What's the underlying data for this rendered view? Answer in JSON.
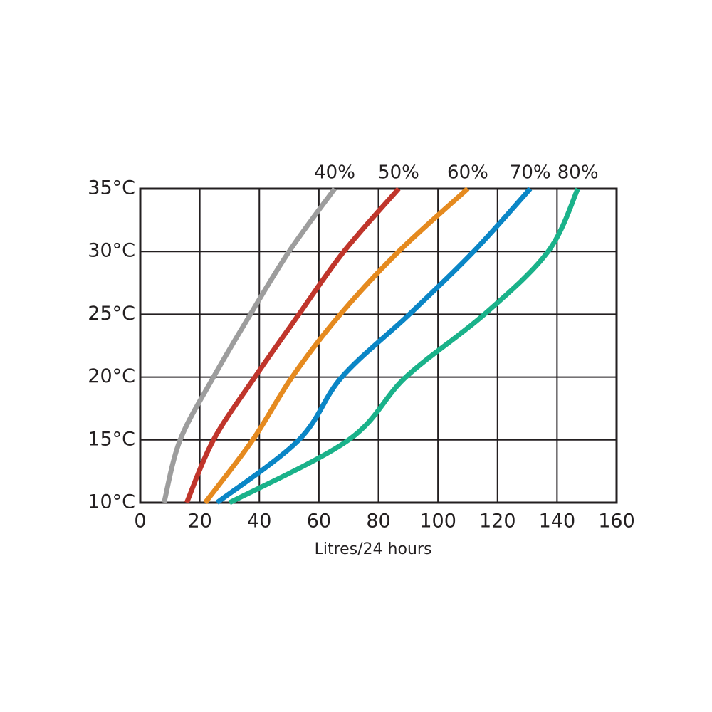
{
  "chart_data": {
    "type": "line",
    "x_label": "Litres/24 hours",
    "xlim": [
      0,
      160
    ],
    "xticks": [
      0,
      20,
      40,
      60,
      80,
      100,
      120,
      140,
      160
    ],
    "ylim": [
      10,
      35
    ],
    "yticks": [
      {
        "value": 10,
        "label": "10°C"
      },
      {
        "value": 15,
        "label": "15°C"
      },
      {
        "value": 20,
        "label": "20°C"
      },
      {
        "value": 25,
        "label": "25°C"
      },
      {
        "value": 30,
        "label": "30°C"
      },
      {
        "value": 35,
        "label": "35°C"
      }
    ],
    "grid": true,
    "series": [
      {
        "name": "40%",
        "color": "#9d9d9d",
        "x": [
          8,
          13.4,
          24.6,
          37,
          50,
          65.3
        ],
        "values": [
          10,
          15,
          20,
          25,
          30,
          35
        ]
      },
      {
        "name": "50%",
        "color": "#c0352b",
        "x": [
          15.6,
          24.6,
          38.5,
          53.3,
          68.4,
          86.8
        ],
        "values": [
          10,
          15,
          20,
          25,
          30,
          35
        ]
      },
      {
        "name": "60%",
        "color": "#e58a1f",
        "x": [
          21.8,
          37.8,
          51,
          67.2,
          86.8,
          110
        ],
        "values": [
          10,
          15,
          20,
          25,
          30,
          35
        ]
      },
      {
        "name": "70%",
        "color": "#0a86c6",
        "x": [
          25.8,
          53.3,
          67.7,
          90.4,
          112,
          131
        ],
        "values": [
          10,
          15,
          20,
          25,
          30,
          35
        ]
      },
      {
        "name": "80%",
        "color": "#1ab28a",
        "x": [
          30,
          70,
          89.2,
          115.6,
          137,
          147
        ],
        "values": [
          10,
          15,
          20,
          25,
          30,
          35
        ]
      }
    ]
  }
}
